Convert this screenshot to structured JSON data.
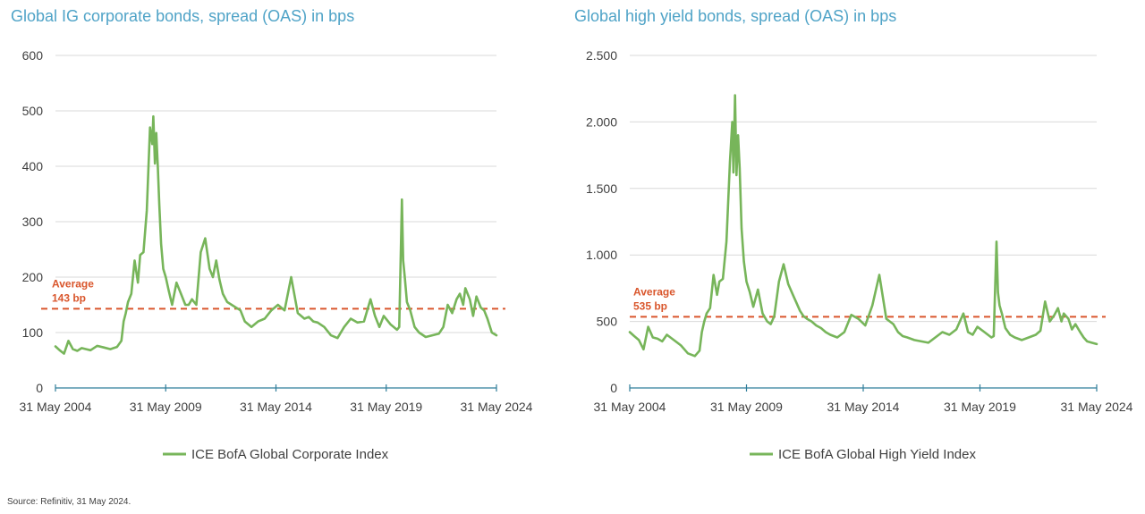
{
  "source_note": "Source: Refinitiv, 31 May 2024.",
  "colors": {
    "series": "#77b55a",
    "average": "#d9562c",
    "title": "#4fa3c7",
    "grid": "#d9d9d9",
    "axis": "#2f7d9a",
    "text": "#404040"
  },
  "chart_data": [
    {
      "type": "line",
      "title": "Global IG corporate bonds, spread (OAS) in bps",
      "ylim": [
        0,
        600
      ],
      "yticks": [
        {
          "value": 0,
          "label": "0"
        },
        {
          "value": 100,
          "label": "100"
        },
        {
          "value": 200,
          "label": "200"
        },
        {
          "value": 300,
          "label": "300"
        },
        {
          "value": 400,
          "label": "400"
        },
        {
          "value": 500,
          "label": "500"
        },
        {
          "value": 600,
          "label": "600"
        }
      ],
      "xlim": [
        2004.41,
        2024.41
      ],
      "xticks": [
        {
          "value": 2004.41,
          "label": "31 May 2004"
        },
        {
          "value": 2009.41,
          "label": "31 May 2009"
        },
        {
          "value": 2014.41,
          "label": "31 May 2014"
        },
        {
          "value": 2019.41,
          "label": "31 May 2019"
        },
        {
          "value": 2024.41,
          "label": "31 May 2024"
        }
      ],
      "grid": true,
      "legend": "bottom-center",
      "average": {
        "value": 143,
        "label_line1": "Average",
        "label_line2": "143 bp"
      },
      "series": [
        {
          "name": "ICE BofA Global Corporate Index",
          "x": [
            2004.41,
            2004.6,
            2004.8,
            2005.0,
            2005.2,
            2005.4,
            2005.6,
            2005.8,
            2006.0,
            2006.3,
            2006.6,
            2006.9,
            2007.2,
            2007.4,
            2007.5,
            2007.6,
            2007.7,
            2007.85,
            2008.0,
            2008.15,
            2008.25,
            2008.4,
            2008.55,
            2008.7,
            2008.8,
            2008.85,
            2008.92,
            2008.98,
            2009.05,
            2009.12,
            2009.2,
            2009.3,
            2009.41,
            2009.55,
            2009.7,
            2009.9,
            2010.1,
            2010.3,
            2010.45,
            2010.6,
            2010.8,
            2011.0,
            2011.2,
            2011.4,
            2011.55,
            2011.7,
            2011.85,
            2012.0,
            2012.2,
            2012.4,
            2012.6,
            2012.8,
            2013.0,
            2013.3,
            2013.6,
            2013.9,
            2014.2,
            2014.5,
            2014.8,
            2015.1,
            2015.4,
            2015.7,
            2015.9,
            2016.1,
            2016.3,
            2016.6,
            2016.9,
            2017.2,
            2017.5,
            2017.8,
            2018.1,
            2018.4,
            2018.7,
            2018.9,
            2019.1,
            2019.3,
            2019.6,
            2019.9,
            2020.0,
            2020.12,
            2020.18,
            2020.25,
            2020.35,
            2020.5,
            2020.7,
            2020.9,
            2021.2,
            2021.5,
            2021.8,
            2022.0,
            2022.2,
            2022.4,
            2022.6,
            2022.75,
            2022.9,
            2023.0,
            2023.2,
            2023.35,
            2023.5,
            2023.7,
            2023.85,
            2024.0,
            2024.2,
            2024.41
          ],
          "values": [
            75,
            68,
            62,
            85,
            70,
            67,
            72,
            70,
            68,
            76,
            73,
            70,
            74,
            85,
            120,
            135,
            155,
            170,
            230,
            190,
            240,
            245,
            320,
            470,
            440,
            490,
            405,
            460,
            400,
            330,
            260,
            215,
            200,
            175,
            150,
            190,
            170,
            150,
            150,
            160,
            150,
            245,
            270,
            215,
            200,
            230,
            195,
            170,
            155,
            150,
            145,
            140,
            120,
            110,
            120,
            125,
            140,
            150,
            140,
            200,
            135,
            125,
            128,
            120,
            118,
            110,
            95,
            90,
            110,
            125,
            118,
            120,
            160,
            130,
            110,
            130,
            115,
            105,
            110,
            340,
            230,
            200,
            155,
            140,
            110,
            100,
            92,
            95,
            98,
            110,
            150,
            135,
            160,
            170,
            150,
            180,
            160,
            130,
            165,
            145,
            140,
            125,
            100,
            95
          ]
        }
      ]
    },
    {
      "type": "line",
      "title": "Global high yield bonds, spread (OAS) in bps",
      "ylim": [
        0,
        2500
      ],
      "yticks": [
        {
          "value": 0,
          "label": "0"
        },
        {
          "value": 500,
          "label": "500"
        },
        {
          "value": 1000,
          "label": "1.000"
        },
        {
          "value": 1500,
          "label": "1.500"
        },
        {
          "value": 2000,
          "label": "2.000"
        },
        {
          "value": 2500,
          "label": "2.500"
        }
      ],
      "xlim": [
        2004.41,
        2024.41
      ],
      "xticks": [
        {
          "value": 2004.41,
          "label": "31 May 2004"
        },
        {
          "value": 2009.41,
          "label": "31 May 2009"
        },
        {
          "value": 2014.41,
          "label": "31 May 2014"
        },
        {
          "value": 2019.41,
          "label": "31 May 2019"
        },
        {
          "value": 2024.41,
          "label": "31 May 2024"
        }
      ],
      "grid": true,
      "legend": "bottom-center",
      "average": {
        "value": 535,
        "label_line1": "Average",
        "label_line2": "535 bp"
      },
      "series": [
        {
          "name": "ICE BofA Global High Yield Index",
          "x": [
            2004.41,
            2004.6,
            2004.8,
            2005.0,
            2005.2,
            2005.4,
            2005.6,
            2005.8,
            2006.0,
            2006.3,
            2006.6,
            2006.9,
            2007.2,
            2007.4,
            2007.5,
            2007.6,
            2007.7,
            2007.85,
            2008.0,
            2008.15,
            2008.25,
            2008.4,
            2008.55,
            2008.7,
            2008.8,
            2008.85,
            2008.92,
            2008.98,
            2009.05,
            2009.12,
            2009.2,
            2009.3,
            2009.41,
            2009.55,
            2009.7,
            2009.9,
            2010.1,
            2010.3,
            2010.45,
            2010.6,
            2010.8,
            2011.0,
            2011.2,
            2011.4,
            2011.55,
            2011.7,
            2011.85,
            2012.0,
            2012.2,
            2012.4,
            2012.6,
            2012.8,
            2013.0,
            2013.3,
            2013.6,
            2013.9,
            2014.2,
            2014.5,
            2014.8,
            2015.1,
            2015.4,
            2015.7,
            2015.9,
            2016.1,
            2016.3,
            2016.6,
            2016.9,
            2017.2,
            2017.5,
            2017.8,
            2018.1,
            2018.4,
            2018.7,
            2018.9,
            2019.1,
            2019.3,
            2019.6,
            2019.9,
            2020.0,
            2020.12,
            2020.18,
            2020.25,
            2020.35,
            2020.5,
            2020.7,
            2020.9,
            2021.2,
            2021.5,
            2021.8,
            2022.0,
            2022.2,
            2022.4,
            2022.6,
            2022.75,
            2022.9,
            2023.0,
            2023.2,
            2023.35,
            2023.5,
            2023.7,
            2023.85,
            2024.0,
            2024.2,
            2024.41
          ],
          "values": [
            420,
            390,
            360,
            290,
            460,
            380,
            370,
            350,
            400,
            360,
            320,
            260,
            240,
            280,
            420,
            500,
            560,
            600,
            850,
            700,
            800,
            820,
            1100,
            1700,
            2000,
            1620,
            2200,
            1600,
            1900,
            1650,
            1200,
            950,
            800,
            720,
            610,
            740,
            560,
            500,
            480,
            540,
            800,
            930,
            780,
            700,
            640,
            580,
            540,
            520,
            500,
            470,
            450,
            420,
            400,
            380,
            420,
            550,
            520,
            470,
            620,
            850,
            520,
            480,
            420,
            390,
            380,
            360,
            350,
            340,
            380,
            420,
            400,
            440,
            560,
            420,
            400,
            460,
            420,
            380,
            390,
            1100,
            720,
            620,
            560,
            450,
            400,
            380,
            360,
            380,
            400,
            430,
            650,
            500,
            550,
            600,
            500,
            560,
            520,
            440,
            480,
            420,
            380,
            350,
            340,
            330
          ]
        }
      ]
    }
  ]
}
